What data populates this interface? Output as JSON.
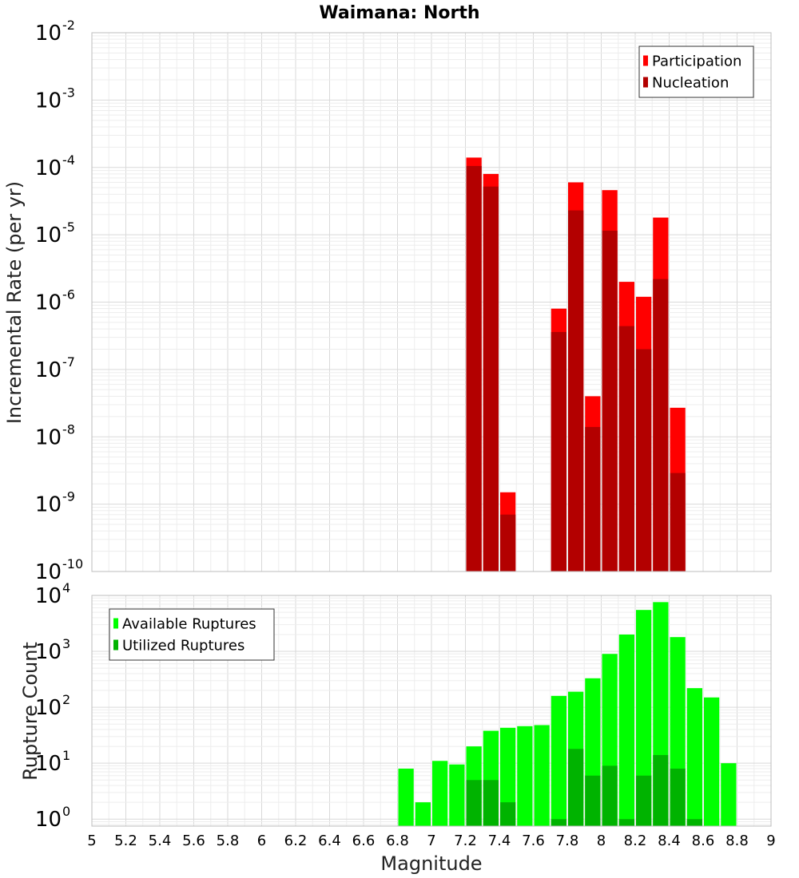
{
  "chart_data": [
    {
      "type": "bar",
      "title": "Waimana: North",
      "xlabel": "",
      "ylabel": "Incremental Rate (per yr)",
      "y_scale": "log",
      "xlim": [
        5,
        9
      ],
      "ylim": [
        1e-10,
        0.01
      ],
      "y_tick_exponents": [
        -2,
        -3,
        -4,
        -5,
        -6,
        -7,
        -8,
        -9,
        -10
      ],
      "legend_placement": "top-right",
      "bar_width": 0.1,
      "colors": {
        "Participation": "#ff0000",
        "Nucleation": "#b30000"
      },
      "x": [
        7.25,
        7.35,
        7.45,
        7.75,
        7.85,
        7.95,
        8.05,
        8.15,
        8.25,
        8.35,
        8.45
      ],
      "series": [
        {
          "name": "Participation",
          "values": [
            0.00014,
            8e-05,
            1.5e-09,
            8e-07,
            6e-05,
            4e-08,
            4.6e-05,
            2e-06,
            1.2e-06,
            1.8e-05,
            2.7e-08
          ]
        },
        {
          "name": "Nucleation",
          "values": [
            0.000105,
            5.2e-05,
            7e-10,
            3.6e-07,
            2.3e-05,
            1.4e-08,
            1.15e-05,
            4.4e-07,
            2e-07,
            2.2e-06,
            2.9e-09
          ]
        }
      ]
    },
    {
      "type": "bar",
      "title": "",
      "xlabel": "Magnitude",
      "ylabel": "Rupture Count",
      "y_scale": "log",
      "xlim": [
        5,
        9
      ],
      "ylim": [
        0.75,
        10000
      ],
      "y_tick_exponents": [
        4,
        3,
        2,
        1,
        0
      ],
      "x_ticks": [
        "5",
        "5.2",
        "5.4",
        "5.6",
        "5.8",
        "6",
        "6.2",
        "6.4",
        "6.6",
        "6.8",
        "7",
        "7.2",
        "7.4",
        "7.6",
        "7.8",
        "8",
        "8.2",
        "8.4",
        "8.6",
        "8.8",
        "9"
      ],
      "legend_placement": "top-left",
      "bar_width": 0.1,
      "colors": {
        "Available Ruptures": "#00ff00",
        "Utilized Ruptures": "#00b300"
      },
      "x": [
        6.85,
        6.95,
        7.05,
        7.15,
        7.25,
        7.35,
        7.45,
        7.55,
        7.65,
        7.75,
        7.85,
        7.95,
        8.05,
        8.15,
        8.25,
        8.35,
        8.45,
        8.55,
        8.65,
        8.75
      ],
      "series": [
        {
          "name": "Available Ruptures",
          "values": [
            8,
            2,
            11,
            9.5,
            20,
            38,
            43,
            46,
            48,
            160,
            190,
            330,
            900,
            2000,
            5500,
            7600,
            1800,
            220,
            150,
            10
          ]
        },
        {
          "name": "Utilized Ruptures",
          "values": [
            null,
            null,
            null,
            null,
            5,
            5,
            2,
            null,
            null,
            1,
            18,
            6,
            9,
            1,
            6,
            14,
            8,
            1,
            null,
            null
          ]
        }
      ]
    }
  ]
}
